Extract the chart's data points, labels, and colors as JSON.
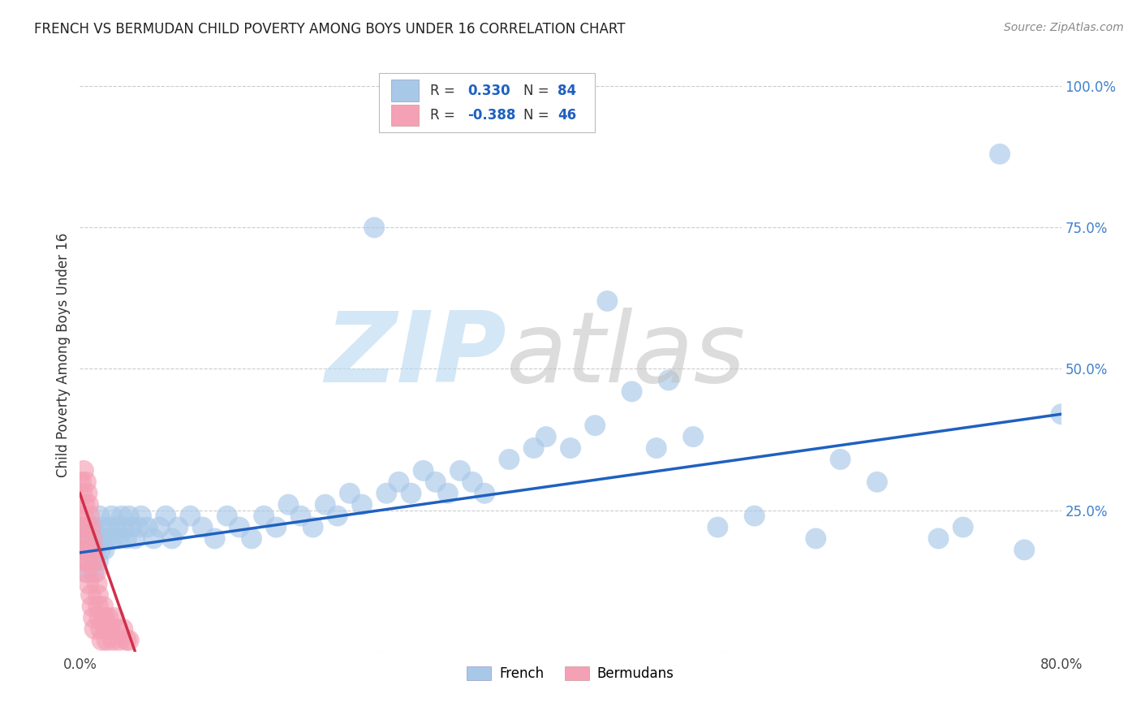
{
  "title": "FRENCH VS BERMUDAN CHILD POVERTY AMONG BOYS UNDER 16 CORRELATION CHART",
  "source": "Source: ZipAtlas.com",
  "ylabel": "Child Poverty Among Boys Under 16",
  "xlim": [
    0.0,
    0.8
  ],
  "ylim": [
    0.0,
    1.05
  ],
  "french_color": "#a8c8e8",
  "bermudan_color": "#f4a0b5",
  "french_line_color": "#2060c0",
  "bermudan_line_color": "#d0304a",
  "legend_R_color": "#2060c0",
  "french_R": "0.330",
  "french_N": "84",
  "bermudan_R": "-0.388",
  "bermudan_N": "46",
  "french_x": [
    0.002,
    0.003,
    0.004,
    0.005,
    0.006,
    0.007,
    0.008,
    0.009,
    0.01,
    0.011,
    0.012,
    0.013,
    0.014,
    0.015,
    0.016,
    0.017,
    0.018,
    0.019,
    0.02,
    0.022,
    0.024,
    0.026,
    0.028,
    0.03,
    0.032,
    0.034,
    0.036,
    0.038,
    0.04,
    0.042,
    0.045,
    0.048,
    0.05,
    0.055,
    0.06,
    0.065,
    0.07,
    0.075,
    0.08,
    0.09,
    0.1,
    0.11,
    0.12,
    0.13,
    0.14,
    0.15,
    0.16,
    0.17,
    0.18,
    0.19,
    0.2,
    0.21,
    0.22,
    0.23,
    0.24,
    0.25,
    0.26,
    0.27,
    0.28,
    0.29,
    0.3,
    0.31,
    0.32,
    0.33,
    0.35,
    0.37,
    0.38,
    0.4,
    0.42,
    0.43,
    0.45,
    0.47,
    0.48,
    0.5,
    0.52,
    0.55,
    0.6,
    0.62,
    0.65,
    0.7,
    0.72,
    0.75,
    0.77,
    0.8
  ],
  "french_y": [
    0.2,
    0.22,
    0.18,
    0.16,
    0.14,
    0.2,
    0.18,
    0.22,
    0.16,
    0.14,
    0.22,
    0.18,
    0.2,
    0.16,
    0.24,
    0.18,
    0.2,
    0.22,
    0.18,
    0.2,
    0.22,
    0.24,
    0.2,
    0.22,
    0.2,
    0.24,
    0.22,
    0.2,
    0.24,
    0.22,
    0.2,
    0.22,
    0.24,
    0.22,
    0.2,
    0.22,
    0.24,
    0.2,
    0.22,
    0.24,
    0.22,
    0.2,
    0.24,
    0.22,
    0.2,
    0.24,
    0.22,
    0.26,
    0.24,
    0.22,
    0.26,
    0.24,
    0.28,
    0.26,
    0.75,
    0.28,
    0.3,
    0.28,
    0.32,
    0.3,
    0.28,
    0.32,
    0.3,
    0.28,
    0.34,
    0.36,
    0.38,
    0.36,
    0.4,
    0.62,
    0.46,
    0.36,
    0.48,
    0.38,
    0.22,
    0.24,
    0.2,
    0.34,
    0.3,
    0.2,
    0.22,
    0.88,
    0.18,
    0.42
  ],
  "bermudan_x": [
    0.001,
    0.001,
    0.002,
    0.002,
    0.003,
    0.003,
    0.003,
    0.004,
    0.004,
    0.005,
    0.005,
    0.005,
    0.006,
    0.006,
    0.007,
    0.007,
    0.008,
    0.008,
    0.009,
    0.009,
    0.01,
    0.01,
    0.011,
    0.011,
    0.012,
    0.012,
    0.013,
    0.014,
    0.015,
    0.015,
    0.016,
    0.017,
    0.018,
    0.019,
    0.02,
    0.021,
    0.022,
    0.023,
    0.025,
    0.027,
    0.028,
    0.03,
    0.032,
    0.035,
    0.038,
    0.04
  ],
  "bermudan_y": [
    0.3,
    0.22,
    0.28,
    0.18,
    0.32,
    0.24,
    0.16,
    0.26,
    0.2,
    0.3,
    0.22,
    0.14,
    0.28,
    0.18,
    0.26,
    0.12,
    0.24,
    0.16,
    0.22,
    0.1,
    0.2,
    0.08,
    0.18,
    0.06,
    0.16,
    0.04,
    0.14,
    0.12,
    0.1,
    0.08,
    0.06,
    0.04,
    0.02,
    0.08,
    0.06,
    0.04,
    0.02,
    0.06,
    0.04,
    0.02,
    0.06,
    0.04,
    0.02,
    0.04,
    0.02,
    0.02
  ],
  "french_line_x0": 0.0,
  "french_line_y0": 0.175,
  "french_line_x1": 0.8,
  "french_line_y1": 0.42,
  "bermudan_line_x0": 0.0,
  "bermudan_line_y0": 0.28,
  "bermudan_line_x1": 0.045,
  "bermudan_line_y1": 0.0
}
